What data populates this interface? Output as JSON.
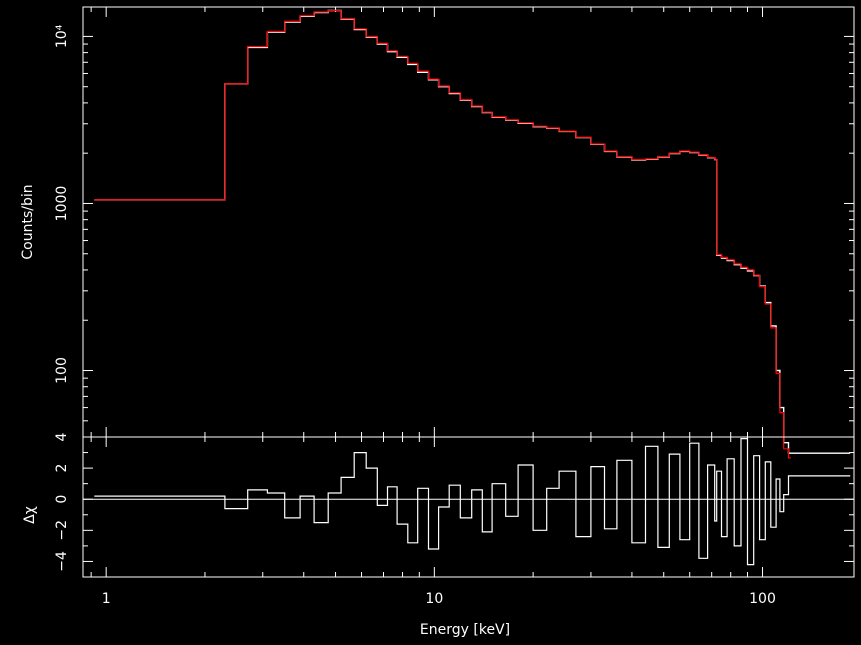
{
  "chart_data": [
    {
      "type": "line",
      "panel": "spectrum",
      "xlabel": "Energy [keV]",
      "ylabel": "Counts/bin",
      "xscale": "log",
      "yscale": "log",
      "xlim": [
        0.85,
        190
      ],
      "ylim": [
        40,
        15000
      ],
      "x_ticks": [
        1,
        10,
        100
      ],
      "x_tick_labels": [
        "1",
        "10",
        "100"
      ],
      "y_ticks": [
        100,
        1000,
        10000
      ],
      "y_tick_labels": [
        "100",
        "1000",
        "10⁴"
      ],
      "grid": false,
      "series": [
        {
          "color": "#ffffff",
          "style": "step",
          "x": [
            0.92,
            2.3,
            2.7,
            3.1,
            3.5,
            3.9,
            4.3,
            4.75,
            5.2,
            5.7,
            6.2,
            6.7,
            7.2,
            7.7,
            8.3,
            8.9,
            9.6,
            10.3,
            11.1,
            12.0,
            13.0,
            14.0,
            15.0,
            16.5,
            18.0,
            20.0,
            22.0,
            24.0,
            27.0,
            30.0,
            33.0,
            36.0,
            40.0,
            44.0,
            48.0,
            52.0,
            56.0,
            60.0,
            64.0,
            68.0,
            71.5,
            72.5,
            75.0,
            78.0,
            82.0,
            86.0,
            90.0,
            94.0,
            98.0,
            102.0,
            106.0,
            110.0,
            113.0,
            116.0,
            120.0,
            185.0
          ],
          "y": [
            1050,
            5200,
            8600,
            10600,
            12200,
            13200,
            13900,
            14300,
            12700,
            11000,
            9900,
            9000,
            8100,
            7500,
            6800,
            6100,
            5500,
            5000,
            4550,
            4150,
            3800,
            3500,
            3280,
            3150,
            3020,
            2880,
            2820,
            2700,
            2480,
            2260,
            2050,
            1900,
            1820,
            1840,
            1900,
            1990,
            2050,
            2020,
            1950,
            1880,
            1830,
            490,
            470,
            455,
            430,
            410,
            395,
            370,
            320,
            255,
            185,
            100,
            60,
            37,
            32,
            32
          ]
        },
        {
          "color": "#ff0000",
          "style": "step",
          "x": [
            0.92,
            2.3,
            2.7,
            3.1,
            3.5,
            3.9,
            4.3,
            4.75,
            5.2,
            5.7,
            6.2,
            6.7,
            7.2,
            7.7,
            8.3,
            8.9,
            9.6,
            10.3,
            11.1,
            12.0,
            13.0,
            14.0,
            15.0,
            16.5,
            18.0,
            20.0,
            22.0,
            24.0,
            27.0,
            30.0,
            33.0,
            36.0,
            40.0,
            44.0,
            48.0,
            52.0,
            56.0,
            60.0,
            64.0,
            68.0,
            71.5,
            72.5,
            75.0,
            78.0,
            82.0,
            86.0,
            90.0,
            94.0,
            98.0,
            102.0,
            106.0,
            110.0,
            113.0,
            116.0,
            120.0,
            122.0
          ],
          "y": [
            1050,
            5200,
            8700,
            10700,
            12300,
            13300,
            14000,
            14300,
            12800,
            11100,
            10000,
            9100,
            8200,
            7600,
            6900,
            6200,
            5550,
            5050,
            4600,
            4180,
            3830,
            3520,
            3300,
            3170,
            3040,
            2900,
            2830,
            2710,
            2490,
            2270,
            2060,
            1910,
            1830,
            1850,
            1910,
            2000,
            2060,
            2030,
            1960,
            1890,
            1840,
            495,
            475,
            460,
            435,
            415,
            400,
            372,
            318,
            250,
            180,
            96,
            56,
            34,
            30,
            30
          ]
        }
      ]
    },
    {
      "type": "line",
      "panel": "residuals",
      "xlabel": "Energy [keV]",
      "ylabel": "Δχ",
      "xscale": "log",
      "xlim": [
        0.85,
        190
      ],
      "ylim": [
        -5,
        4
      ],
      "x_ticks": [
        1,
        10,
        100
      ],
      "x_tick_labels": [
        "1",
        "10",
        "100"
      ],
      "y_ticks": [
        -4,
        -2,
        0,
        2,
        4
      ],
      "y_tick_labels": [
        "−4",
        "−2",
        "0",
        "2",
        "4"
      ],
      "zero_line": true,
      "series": [
        {
          "color": "#ffffff",
          "style": "step",
          "x": [
            0.92,
            2.3,
            2.7,
            3.1,
            3.5,
            3.9,
            4.3,
            4.75,
            5.2,
            5.7,
            6.2,
            6.7,
            7.2,
            7.7,
            8.3,
            8.9,
            9.6,
            10.3,
            11.1,
            12.0,
            13.0,
            14.0,
            15.0,
            16.5,
            18.0,
            20.0,
            22.0,
            24.0,
            27.0,
            30.0,
            33.0,
            36.0,
            40.0,
            44.0,
            48.0,
            52.0,
            56.0,
            60.0,
            64.0,
            68.0,
            71.5,
            72.5,
            75.0,
            78.0,
            82.0,
            86.0,
            90.0,
            94.0,
            98.0,
            102.0,
            106.0,
            110.0,
            113.0,
            116.0,
            120.0,
            185.0
          ],
          "y": [
            0.2,
            -0.6,
            0.6,
            0.4,
            -1.2,
            0.2,
            -1.5,
            0.4,
            1.4,
            3.0,
            2.0,
            -0.4,
            0.8,
            -1.6,
            -2.8,
            0.7,
            -3.2,
            -0.5,
            0.9,
            -1.2,
            0.6,
            -2.1,
            1.0,
            -1.1,
            2.2,
            -2.0,
            0.7,
            1.8,
            -2.4,
            2.1,
            -1.9,
            2.5,
            -2.8,
            3.4,
            -3.1,
            2.9,
            -2.6,
            3.6,
            -3.8,
            2.2,
            -1.4,
            1.8,
            -2.4,
            2.6,
            -3.0,
            3.9,
            -4.2,
            2.8,
            -2.6,
            2.4,
            -1.8,
            1.3,
            -0.8,
            0.3,
            1.5,
            1.5
          ]
        }
      ]
    }
  ]
}
